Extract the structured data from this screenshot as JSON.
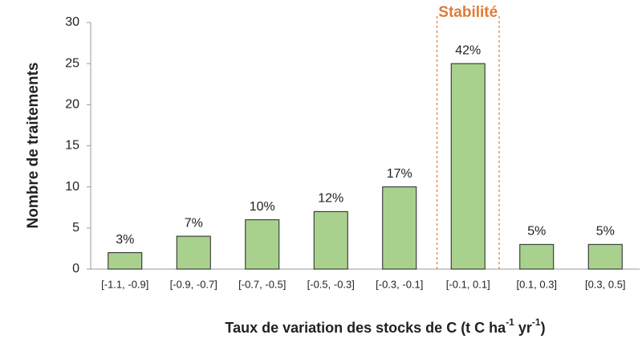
{
  "chart_data": {
    "type": "bar",
    "y_label": "Nombre de traitements",
    "x_label": [
      "Taux de variation des stocks de C (t C ha",
      "-1",
      " yr",
      "-1",
      ")"
    ],
    "categories": [
      "[-1.1, -0.9]",
      "[-0.9, -0.7]",
      "[-0.7, -0.5]",
      "[-0.5, -0.3]",
      "[-0.3, -0.1]",
      "[-0.1, 0.1]",
      "[0.1, 0.3]",
      "[0.3, 0.5]"
    ],
    "values": [
      2,
      4,
      6,
      7,
      10,
      25,
      3,
      3
    ],
    "share_labels": [
      "3%",
      "7%",
      "10%",
      "12%",
      "17%",
      "42%",
      "5%",
      "5%"
    ],
    "color": "#a9d18e",
    "ylim": [
      0,
      30
    ],
    "yticks": [
      0,
      5,
      10,
      15,
      20,
      25,
      30
    ],
    "grid": false,
    "highlight": {
      "label": "Stabilité",
      "category": 5,
      "color": "#e07b39"
    }
  }
}
